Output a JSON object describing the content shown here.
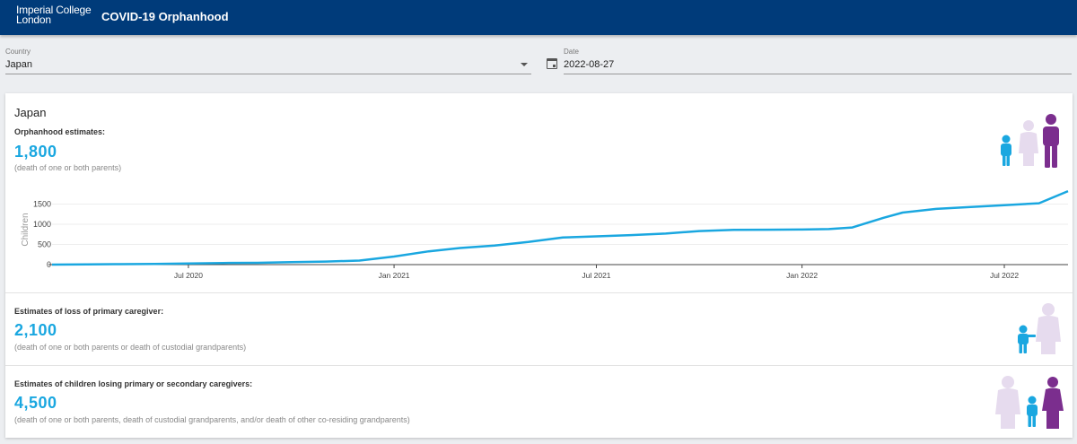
{
  "header": {
    "logo_line1": "Imperial College",
    "logo_line2": "London",
    "app_title": "COVID-19 Orphanhood"
  },
  "filters": {
    "country_label": "Country",
    "country_value": "Japan",
    "date_label": "Date",
    "date_value": "2022-08-27"
  },
  "card": {
    "country": "Japan",
    "orphanhood": {
      "label": "Orphanhood estimates:",
      "value": "1,800",
      "note": "(death of one or both parents)"
    },
    "primary": {
      "label": "Estimates of loss of primary caregiver:",
      "value": "2,100",
      "note": "(death of one or both parents or death of custodial grandparents)"
    },
    "secondary": {
      "label": "Estimates of children losing primary or secondary caregivers:",
      "value": "4,500",
      "note": "(death of one or both parents, death of custodial grandparents, and/or death of other co-residing grandparents)"
    }
  },
  "colors": {
    "child": "#1aa7e0",
    "grandparent": "#e6dbee",
    "parent": "#7b2e8e",
    "line": "#1aa7e0"
  },
  "chart_data": {
    "type": "line",
    "ylabel": "Children",
    "ylim": [
      0,
      1800
    ],
    "yticks": [
      0,
      500,
      1000,
      1500
    ],
    "xtick_labels": [
      "Jul 2020",
      "Jan 2021",
      "Jul 2021",
      "Jan 2022",
      "Jul 2022"
    ],
    "xrange": [
      "2020-03-01",
      "2022-08-27"
    ],
    "series": [
      {
        "x": [
          "2020-03-01",
          "2020-04-01",
          "2020-05-01",
          "2020-06-01",
          "2020-07-01",
          "2020-08-01",
          "2020-09-01",
          "2020-10-01",
          "2020-11-01",
          "2020-12-01",
          "2021-01-01",
          "2021-02-01",
          "2021-03-01",
          "2021-04-01",
          "2021-05-01",
          "2021-06-01",
          "2021-07-01",
          "2021-08-01",
          "2021-09-01",
          "2021-10-01",
          "2021-11-01",
          "2021-12-01",
          "2022-01-01",
          "2022-01-25",
          "2022-02-15",
          "2022-03-01",
          "2022-03-15",
          "2022-04-01",
          "2022-05-01",
          "2022-06-01",
          "2022-07-01",
          "2022-08-01",
          "2022-08-27"
        ],
        "y": [
          0,
          5,
          10,
          15,
          30,
          40,
          45,
          60,
          75,
          100,
          200,
          330,
          410,
          470,
          560,
          670,
          700,
          730,
          770,
          830,
          860,
          865,
          870,
          880,
          920,
          1040,
          1160,
          1290,
          1380,
          1430,
          1470,
          1520,
          1820
        ]
      }
    ]
  }
}
